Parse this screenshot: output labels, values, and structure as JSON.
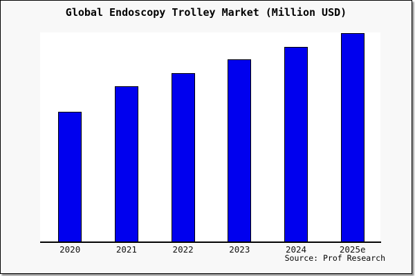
{
  "chart_data": {
    "type": "bar",
    "title": "Global Endoscopy Trolley Market (Million USD)",
    "categories": [
      "2020",
      "2021",
      "2022",
      "2023",
      "2024",
      "2025e"
    ],
    "values": [
      62.3,
      74.5,
      80.8,
      87.2,
      93.2,
      100
    ],
    "values_note": "No y-axis scale or data labels are shown in the image; values are measured bar heights expressed as percent of the tallest (2025e) bar",
    "xlabel": "",
    "ylabel": "",
    "ylim": [
      0,
      100
    ],
    "grid": false,
    "legend": false,
    "bar_color": "#0000ee",
    "bar_border_color": "#000000",
    "plot_bg": "#ffffff",
    "canvas_bg": "#f8f8f8",
    "axis_color": "#000000"
  },
  "source_note": "Source: Prof Research"
}
